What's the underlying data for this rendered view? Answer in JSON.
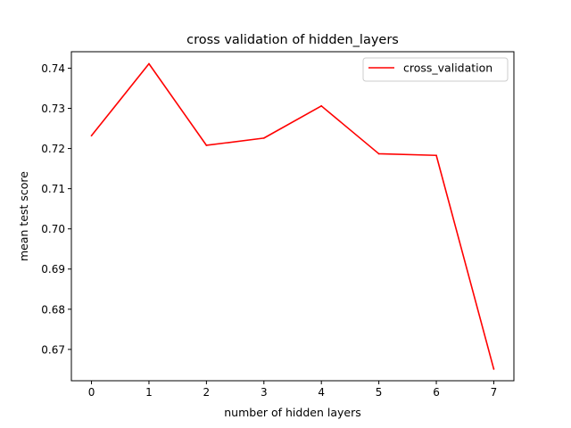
{
  "chart_data": {
    "type": "line",
    "title": "cross validation of hidden_layers",
    "xlabel": "number of hidden layers",
    "ylabel": "mean test score",
    "x": [
      0,
      1,
      2,
      3,
      4,
      5,
      6,
      7
    ],
    "series": [
      {
        "name": "cross_validation",
        "color": "#ff0000",
        "values": [
          0.7232,
          0.7411,
          0.7208,
          0.7226,
          0.7306,
          0.7187,
          0.7183,
          0.6651
        ]
      }
    ],
    "xlim": [
      -0.35,
      7.35
    ],
    "ylim": [
      0.6622,
      0.7441
    ],
    "xticks": [
      "0",
      "1",
      "2",
      "3",
      "4",
      "5",
      "6",
      "7"
    ],
    "yticks": [
      "0.67",
      "0.68",
      "0.69",
      "0.70",
      "0.71",
      "0.72",
      "0.73",
      "0.74"
    ],
    "legend": "top-right",
    "grid": false
  }
}
